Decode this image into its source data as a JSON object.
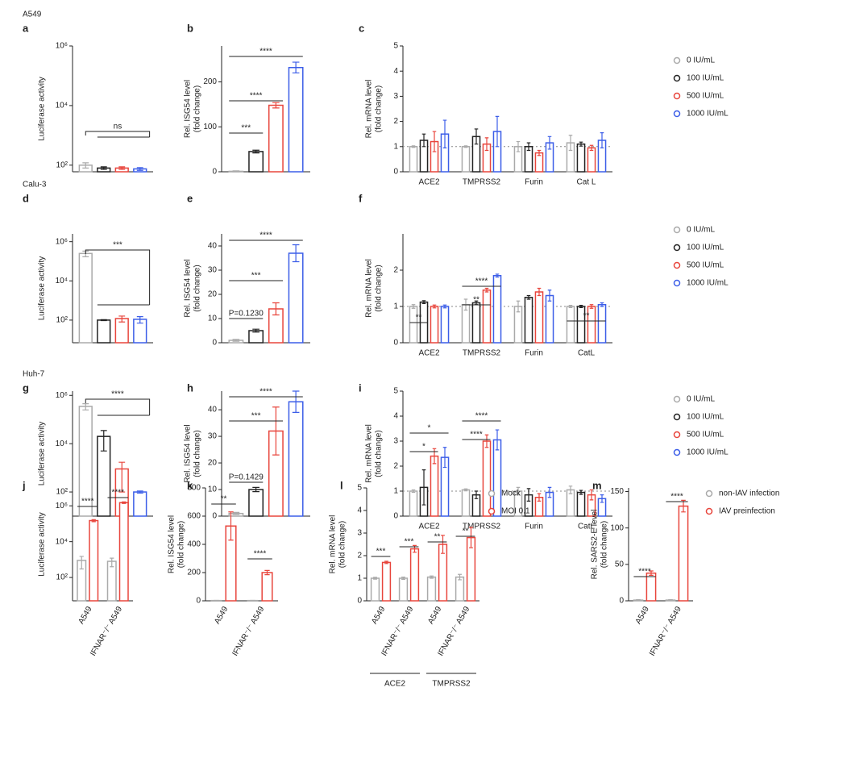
{
  "chart_data": [
    {
      "type": "bar",
      "section": "A549",
      "panel": "a",
      "ylabel": [
        "Luciferase activity"
      ],
      "log": true,
      "categories": [
        null
      ],
      "series": [
        {
          "color": "#aaaaaa",
          "values": [
            100
          ],
          "errors": [
            20
          ]
        },
        {
          "color": "#222222",
          "values": [
            80
          ],
          "errors": [
            8
          ]
        },
        {
          "color": "#e8453c",
          "values": [
            80
          ],
          "errors": [
            8
          ]
        },
        {
          "color": "#3c5ee8",
          "values": [
            75
          ],
          "errors": [
            8
          ]
        }
      ],
      "ylim": [
        60,
        1000000
      ],
      "yticks": [
        {
          "value": 100,
          "label": "10²"
        },
        {
          "value": 10000,
          "label": "10⁴"
        },
        {
          "value": 1000000,
          "label": "10⁶"
        }
      ],
      "annotations": [
        "ns"
      ]
    },
    {
      "type": "bar",
      "panel": "b",
      "ylabel": [
        "Rel. ISG54 level",
        "(fold change)"
      ],
      "categories": [
        null
      ],
      "series": [
        {
          "color": "#aaaaaa",
          "values": [
            1
          ],
          "errors": [
            1
          ]
        },
        {
          "color": "#222222",
          "values": [
            45
          ],
          "errors": [
            3
          ]
        },
        {
          "color": "#e8453c",
          "values": [
            148
          ],
          "errors": [
            6
          ]
        },
        {
          "color": "#3c5ee8",
          "values": [
            232
          ],
          "errors": [
            12
          ]
        }
      ],
      "ylim": [
        0,
        280
      ],
      "yticks": [
        0,
        100,
        200
      ],
      "annotations": [
        "***",
        "****",
        "****"
      ]
    },
    {
      "type": "bar",
      "panel": "c",
      "ylabel": [
        "Rel. mRNA level",
        "(fold change)"
      ],
      "categories": [
        "ACE2",
        "TMPRSS2",
        "Furin",
        "Cat L"
      ],
      "reference_line": 1,
      "legend": true,
      "series": [
        {
          "name": "0 IU/mL",
          "color": "#aaaaaa",
          "values": [
            1,
            1,
            1,
            1.15
          ],
          "errors": [
            0.03,
            0.03,
            0.2,
            0.3
          ]
        },
        {
          "name": "100 IU/mL",
          "color": "#222222",
          "values": [
            1.25,
            1.4,
            1.0,
            1.1
          ],
          "errors": [
            0.25,
            0.3,
            0.15,
            0.08
          ]
        },
        {
          "name": "500 IU/mL",
          "color": "#e8453c",
          "values": [
            1.2,
            1.1,
            0.75,
            0.95
          ],
          "errors": [
            0.4,
            0.25,
            0.1,
            0.1
          ]
        },
        {
          "name": "1000 IU/mL",
          "color": "#3c5ee8",
          "values": [
            1.5,
            1.6,
            1.15,
            1.25
          ],
          "errors": [
            0.55,
            0.6,
            0.25,
            0.3
          ]
        }
      ],
      "ylim": [
        0,
        5
      ],
      "yticks": [
        0,
        1,
        2,
        3,
        4,
        5
      ]
    },
    {
      "type": "bar",
      "section": "Calu-3",
      "panel": "d",
      "ylabel": [
        "Luciferase activity"
      ],
      "log": true,
      "categories": [
        null
      ],
      "series": [
        {
          "color": "#aaaaaa",
          "values": [
            250000
          ],
          "errors": [
            80000
          ]
        },
        {
          "color": "#222222",
          "values": [
            100
          ],
          "errors": [
            5
          ]
        },
        {
          "color": "#e8453c",
          "values": [
            120
          ],
          "errors": [
            40
          ]
        },
        {
          "color": "#3c5ee8",
          "values": [
            110
          ],
          "errors": [
            40
          ]
        }
      ],
      "ylim": [
        7,
        2500000
      ],
      "yticks": [
        {
          "value": 100,
          "label": "10²"
        },
        {
          "value": 10000,
          "label": "10⁴"
        },
        {
          "value": 1000000,
          "label": "10⁶"
        }
      ],
      "annotations": [
        "***"
      ]
    },
    {
      "type": "bar",
      "panel": "e",
      "ylabel": [
        "Rel. ISG54 level",
        "(fold change)"
      ],
      "categories": [
        null
      ],
      "series": [
        {
          "color": "#aaaaaa",
          "values": [
            1
          ],
          "errors": [
            0.4
          ]
        },
        {
          "color": "#222222",
          "values": [
            5
          ],
          "errors": [
            0.6
          ]
        },
        {
          "color": "#e8453c",
          "values": [
            14
          ],
          "errors": [
            2.5
          ]
        },
        {
          "color": "#3c5ee8",
          "values": [
            37
          ],
          "errors": [
            3.5
          ]
        }
      ],
      "ylim": [
        0,
        45
      ],
      "yticks": [
        0,
        10,
        20,
        30,
        40
      ],
      "annotations": [
        "P=0.1230",
        "***",
        "****"
      ]
    },
    {
      "type": "bar",
      "panel": "f",
      "ylabel": [
        "Rel. mRNA level",
        "(fold change)"
      ],
      "categories": [
        "ACE2",
        "TMPRSS2",
        "Furin",
        "CatL"
      ],
      "reference_line": 1,
      "legend": true,
      "series": [
        {
          "name": "0 IU/mL",
          "color": "#aaaaaa",
          "values": [
            1,
            1.05,
            1.0,
            1
          ],
          "errors": [
            0.05,
            0.15,
            0.15,
            0.03
          ]
        },
        {
          "name": "100 IU/mL",
          "color": "#222222",
          "values": [
            1.12,
            1.1,
            1.25,
            1
          ],
          "errors": [
            0.04,
            0.05,
            0.05,
            0.03
          ]
        },
        {
          "name": "500 IU/mL",
          "color": "#e8453c",
          "values": [
            1.0,
            1.45,
            1.4,
            1
          ],
          "errors": [
            0.04,
            0.05,
            0.1,
            0.05
          ]
        },
        {
          "name": "1000 IU/mL",
          "color": "#3c5ee8",
          "values": [
            1.0,
            1.85,
            1.3,
            1.05
          ],
          "errors": [
            0.04,
            0.04,
            0.15,
            0.05
          ]
        }
      ],
      "ylim": [
        0,
        3
      ],
      "yticks": [
        0,
        1,
        2
      ],
      "annotations": [
        "**",
        "****",
        "**",
        "**"
      ]
    },
    {
      "type": "bar",
      "section": "Huh-7",
      "panel": "g",
      "ylabel": [
        "Luciferase activity"
      ],
      "log": true,
      "categories": [
        null
      ],
      "series": [
        {
          "color": "#aaaaaa",
          "values": [
            350000
          ],
          "errors": [
            100000
          ]
        },
        {
          "color": "#222222",
          "values": [
            20000
          ],
          "errors": [
            15000
          ]
        },
        {
          "color": "#e8453c",
          "values": [
            900
          ],
          "errors": [
            800
          ]
        },
        {
          "color": "#3c5ee8",
          "values": [
            100
          ],
          "errors": [
            10
          ]
        }
      ],
      "ylim": [
        10,
        1500000
      ],
      "yticks": [
        {
          "value": 100,
          "label": "10²"
        },
        {
          "value": 10000,
          "label": "10⁴"
        },
        {
          "value": 1000000,
          "label": "10⁶"
        }
      ],
      "annotations": [
        "****"
      ]
    },
    {
      "type": "bar",
      "panel": "h",
      "ylabel": [
        "Rel. ISG54 level",
        "(fold change)"
      ],
      "categories": [
        null
      ],
      "series": [
        {
          "color": "#aaaaaa",
          "values": [
            1
          ],
          "errors": [
            0.4
          ]
        },
        {
          "color": "#222222",
          "values": [
            10
          ],
          "errors": [
            0.8
          ]
        },
        {
          "color": "#e8453c",
          "values": [
            32
          ],
          "errors": [
            9
          ]
        },
        {
          "color": "#3c5ee8",
          "values": [
            43
          ],
          "errors": [
            4
          ]
        }
      ],
      "ylim": [
        0,
        47
      ],
      "yticks": [
        0,
        10,
        20,
        30,
        40
      ],
      "annotations": [
        "P=0.1429",
        "***",
        "****"
      ]
    },
    {
      "type": "bar",
      "panel": "i",
      "ylabel": [
        "Rel. mRNA level",
        "(fold change)"
      ],
      "categories": [
        "ACE2",
        "TMPRSS2",
        "Furin",
        "CatL"
      ],
      "reference_line": 1,
      "legend": true,
      "series": [
        {
          "name": "0 IU/mL",
          "color": "#aaaaaa",
          "values": [
            1,
            1.05,
            1.0,
            1.05
          ],
          "errors": [
            0.05,
            0.04,
            0.15,
            0.15
          ]
        },
        {
          "name": "100 IU/mL",
          "color": "#222222",
          "values": [
            1.15,
            0.85,
            0.85,
            0.95
          ],
          "errors": [
            0.7,
            0.15,
            0.25,
            0.08
          ]
        },
        {
          "name": "500 IU/mL",
          "color": "#e8453c",
          "values": [
            2.4,
            3.0,
            0.75,
            0.85
          ],
          "errors": [
            0.3,
            0.25,
            0.15,
            0.2
          ]
        },
        {
          "name": "1000 IU/mL",
          "color": "#3c5ee8",
          "values": [
            2.35,
            3.05,
            0.95,
            0.7
          ],
          "errors": [
            0.4,
            0.4,
            0.2,
            0.15
          ]
        }
      ],
      "ylim": [
        0,
        5
      ],
      "yticks": [
        0,
        1,
        2,
        3,
        4,
        5
      ],
      "annotations": [
        "*",
        "*",
        "****",
        "****"
      ]
    },
    {
      "type": "bar",
      "panel": "j",
      "ylabel": [
        "Luciferase activity"
      ],
      "log": true,
      "categories": [
        "A549",
        "IFNAR⁻/⁻ A549"
      ],
      "series": [
        {
          "color": "#aaaaaa",
          "values": [
            900,
            800
          ],
          "errors": [
            600,
            400
          ]
        },
        {
          "color": "#e8453c",
          "values": [
            150000,
            1500000
          ],
          "errors": [
            20000,
            150000
          ]
        }
      ],
      "ylim": [
        5,
        10000000
      ],
      "yticks": [
        {
          "value": 100,
          "label": "10²"
        },
        {
          "value": 10000,
          "label": "10⁴"
        },
        {
          "value": 1000000,
          "label": "10⁶"
        }
      ],
      "annotations": [
        "****",
        "****"
      ]
    },
    {
      "type": "bar",
      "panel": "k",
      "ylabel": [
        "Rel. ISG54 level",
        "(fold change)"
      ],
      "categories": [
        "A549",
        "IFNAR⁻/⁻ A549"
      ],
      "series": [
        {
          "color": "#aaaaaa",
          "values": [
            2,
            2
          ],
          "errors": [
            1,
            1
          ]
        },
        {
          "color": "#e8453c",
          "values": [
            530,
            200
          ],
          "errors": [
            100,
            15
          ]
        }
      ],
      "ylim": [
        0,
        800
      ],
      "yticks": [
        0,
        200,
        400,
        600,
        800
      ],
      "annotations": [
        "**",
        "****"
      ]
    },
    {
      "type": "bar",
      "panel": "l",
      "ylabel": [
        "Rel. mRNA level",
        "(fold change)"
      ],
      "categories": [
        "A549",
        "IFNAR⁻/⁻ A549",
        "A549",
        "IFNAR⁻/⁻ A549"
      ],
      "group_labels": [
        "ACE2",
        "TMPRSS2"
      ],
      "legend": true,
      "series": [
        {
          "name": "Mock",
          "color": "#aaaaaa",
          "values": [
            1,
            1,
            1.05,
            1.05
          ],
          "errors": [
            0.04,
            0.05,
            0.05,
            0.12
          ]
        },
        {
          "name": "MOI 0.1",
          "color": "#e8453c",
          "values": [
            1.7,
            2.3,
            2.5,
            2.8
          ],
          "errors": [
            0.05,
            0.15,
            0.4,
            0.45
          ]
        }
      ],
      "ylim": [
        0,
        5
      ],
      "yticks": [
        0,
        1,
        2,
        3,
        4,
        5
      ],
      "annotations": [
        "***",
        "***",
        "**",
        "**"
      ]
    },
    {
      "type": "bar",
      "panel": "m",
      "ylabel": [
        "Rel. SARS2-E level",
        "(fold change)"
      ],
      "categories": [
        "A549",
        "IFNAR⁻/⁻ A549"
      ],
      "legend": true,
      "series": [
        {
          "name": "non-IAV infection",
          "color": "#aaaaaa",
          "values": [
            1,
            1
          ],
          "errors": [
            0.5,
            0.5
          ]
        },
        {
          "name": "IAV preinfection",
          "color": "#e8453c",
          "values": [
            38,
            130
          ],
          "errors": [
            3,
            8
          ]
        }
      ],
      "ylim": [
        0,
        155
      ],
      "yticks": [
        0,
        50,
        100,
        150
      ],
      "annotations": [
        "****",
        "****"
      ]
    }
  ]
}
